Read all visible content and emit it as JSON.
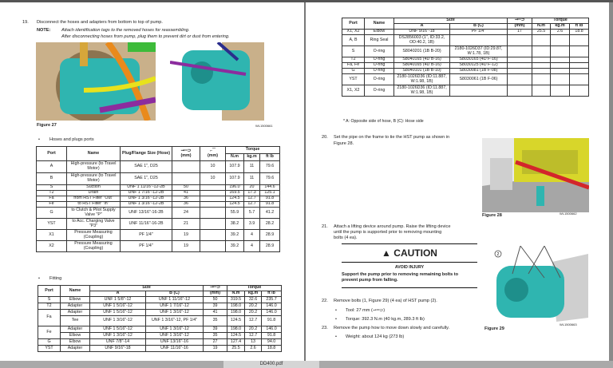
{
  "viewer": {
    "file_tab": "DD400.pdf"
  },
  "left": {
    "step19": {
      "num": "19.",
      "text": "Disconnect the hoses and adapters from bottom to top of pump."
    },
    "note": {
      "label": "NOTE:",
      "line1": "Attach identification tags to the removed hoses for reassembling.",
      "line2": "After disconnecting hoses from pump, plug them to prevent dirt or dust from entering."
    },
    "figure27": {
      "caption": "Figure 27",
      "code": "WL1500661",
      "labels": [
        "T2",
        "A",
        "S",
        "Fe",
        "Fa",
        "B",
        "G",
        "YST",
        "X2",
        "X1"
      ]
    },
    "section1": "Hoses and plugs ports",
    "table1": {
      "headers": {
        "port": "Port",
        "name": "Name",
        "plug": "Plug/Flange Size (Hose)",
        "wrench": "(mm)",
        "hex": "(mm)",
        "torque": "Torque",
        "nm": "N.m",
        "kgm": "kg.m",
        "ftlb": "ft lb"
      },
      "rows": [
        [
          "A",
          "High-pressure (to Travel Motor)",
          "SAE 1\", D25",
          "",
          "10",
          "107.9",
          "11",
          "79.6"
        ],
        [
          "B",
          "High-pressure (to Travel Motor)",
          "SAE 1\", D25",
          "",
          "10",
          "107.9",
          "11",
          "79.6"
        ],
        [
          "S",
          "Suction",
          "UNF 1 11/16\"-12-2B",
          "50",
          "",
          "196.0",
          "20",
          "144.6"
        ],
        [
          "T2",
          "Drain",
          "UNF 1 7/16\"-12-2B",
          "41",
          "",
          "169.5",
          "17.3",
          "125.1"
        ],
        [
          "Fa",
          "from HST Filter \"Out\"",
          "UNF 1 3/16\"-12-2B",
          "36",
          "",
          "124.5",
          "12.7",
          "91.8"
        ],
        [
          "Fe",
          "to HST Filter \"In\"",
          "UNF 1 3/16\"-12-2B",
          "36",
          "",
          "124.5",
          "12.7",
          "91.8"
        ],
        [
          "G",
          "to Clutch & Pilot Supply Valve \"P\"",
          "UNF 13/16\"-16-2B",
          "24",
          "",
          "55.9",
          "5.7",
          "41.2"
        ],
        [
          "YST",
          "to Acc. Charging Valve \"P3\"",
          "UNF 11/16\"-16-2B",
          "21",
          "",
          "38.2",
          "3.9",
          "28.2"
        ],
        [
          "X1",
          "Pressure Measuring (Coupling)",
          "PF 1/4\"",
          "19",
          "",
          "39.2",
          "4",
          "28.9"
        ],
        [
          "X2",
          "Pressure Measuring (Coupling)",
          "PF 1/4\"",
          "19",
          "",
          "39.2",
          "4",
          "28.9"
        ]
      ]
    },
    "section2": "Fitting",
    "table2": {
      "headers": {
        "port": "Port",
        "name": "Name",
        "size": "Size",
        "a": "A",
        "b": "B (C)",
        "wrench": "(mm)",
        "torque": "Torque",
        "nm": "N.m",
        "kgm": "kg.m",
        "ftlb": "ft lb"
      },
      "rows": [
        [
          "S",
          "Elbow",
          "UNF 1 5/8\"-12",
          "UNF 1 11/16\"-12",
          "50",
          "319.5",
          "32.6",
          "235.7"
        ],
        [
          "T2",
          "Adapter",
          "UNF 1 5/16\"-12",
          "UNF 1 7/16\"-12",
          "39",
          "198.0",
          "20.2",
          "146.0"
        ],
        [
          "Fa",
          "Adapter",
          "UNF 1 5/16\"-12",
          "UNF 1 3/16\"-12",
          "41",
          "198.0",
          "20.2",
          "146.0"
        ],
        [
          "",
          "Tee",
          "UNF 1 3/16\"-12",
          "UNF 1 3/16\"-12, PF 1/4\"",
          "35",
          "124.5",
          "12.7",
          "91.8"
        ],
        [
          "Fe",
          "Adapter",
          "UNF 1 5/16\"-12",
          "UNF 1 3/16\"-12",
          "39",
          "198.0",
          "20.2",
          "146.0"
        ],
        [
          "",
          "Elbow",
          "UNF 1 3/16\"-12",
          "UNF 1 3/16\"-12",
          "35",
          "124.5",
          "12.7",
          "91.8"
        ],
        [
          "G",
          "Elbow",
          "UNF 7/8\"-14",
          "UNF 13/16\"-16",
          "27",
          "127.4",
          "13",
          "94.0"
        ],
        [
          "YST",
          "Adapter",
          "UNF 9/16\"-18",
          "UNF 11/16\"-16",
          "19",
          "25.5",
          "2.6",
          "18.8"
        ]
      ]
    }
  },
  "right": {
    "table3": {
      "rows": [
        [
          "X1, X2",
          "Elbow",
          "UNF 9/16\"-18",
          "PF 1/4\"",
          "17",
          "25.5",
          "2.6",
          "18.8"
        ],
        [
          "A, B",
          "Ring Seal",
          "DS2856003 (1\", ID:33.2, OD:40.2, 1B)",
          "",
          "",
          "",
          "",
          ""
        ],
        [
          "S",
          "O-ring",
          "S8040201 (1B B-20)",
          "2180-1026D37 (ID:29.87, W:1.78, 1B)",
          "",
          "",
          "",
          ""
        ],
        [
          "T2",
          "O-ring",
          "S8040165 (4D B-16)",
          "S8030165 (4D F-16)",
          "",
          "",
          "",
          ""
        ],
        [
          "Fa, Fe",
          "O-ring",
          "S8040165 (4D B-16)",
          "S8030125 (4D F-12)",
          "",
          "",
          "",
          ""
        ],
        [
          "G",
          "O-ring",
          "S8040101 (1B B-10)",
          "S8030081 (1B F-08)",
          "",
          "",
          "",
          ""
        ],
        [
          "YST",
          "O-ring",
          "2180-1026D36 (ID:11.887, W:1.98, 1B)",
          "S8030061 (1B F-06)",
          "",
          "",
          "",
          ""
        ],
        [
          "X1, X2",
          "O-ring",
          "2180-1026D36 (ID:11.887, W:1.98, 1B)",
          "",
          "",
          "",
          "",
          ""
        ]
      ]
    },
    "footnote": "* A: Opposite side of hose, B (C): Hose side",
    "step20": {
      "num": "20.",
      "line1": "Set the pipe on the frame to tie the HST pump as shown in",
      "line2": "Figure 28."
    },
    "figure28": {
      "caption": "Figure 28",
      "code": "WL1500662"
    },
    "step21": {
      "num": "21.",
      "line1": "Attach a lifting device around pump. Raise the lifting device",
      "line2": "until the pump is supported prior to removing mounting",
      "line3": "bolts (4 ea)."
    },
    "caution": {
      "title": "CAUTION",
      "sub": "AVOID INJURY",
      "line1": "Support the pump prior to removing remaining bolts to",
      "line2": "prevent pump from falling."
    },
    "step22": {
      "num": "22.",
      "text": "Remove bolts (1, Figure 29) (4 ea) of HST pump (2).",
      "tool": "Tool: 27 mm (",
      "tool_end": ")",
      "torque": "Torque: 392.3 N.m (40 kg.m, 289.3 ft lb)"
    },
    "step23": {
      "num": "23.",
      "text": "Remove the pump how to move down slowly and carefully.",
      "weight": "Weight: about 124 kg (273 lb)"
    },
    "figure29": {
      "caption": "Figure 29",
      "code": "WL1500663",
      "labels": [
        "1",
        "2"
      ]
    }
  },
  "colors": {
    "pump": "#2fb5b0",
    "hose_orange": "#e98a1c",
    "hose_yellow": "#e8e21d",
    "hose_purple": "#8c2c9e",
    "frame_yellow": "#d8d62a",
    "pipe_red": "#d3262b"
  }
}
